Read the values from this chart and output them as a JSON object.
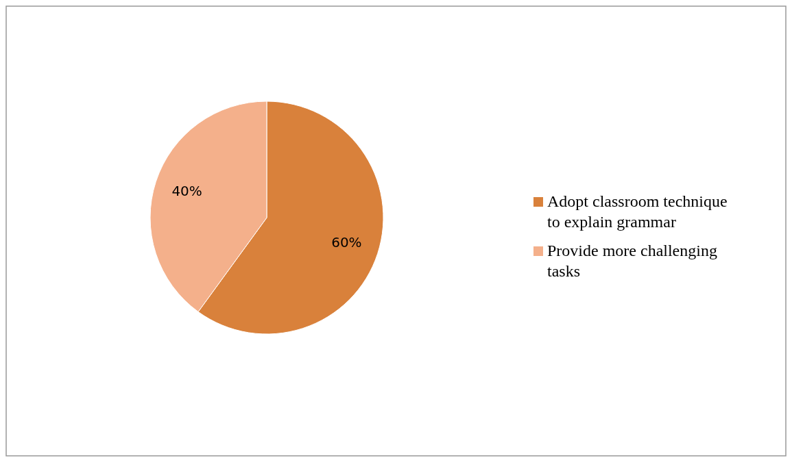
{
  "chart_data": {
    "type": "pie",
    "categories": [
      "Adopt classroom technique to explain grammar",
      "Provide more challenging tasks"
    ],
    "values": [
      60,
      40
    ],
    "colors": [
      "#d9813b",
      "#f4b08b"
    ],
    "value_labels": [
      "60%",
      "40%"
    ],
    "legend": "right"
  }
}
